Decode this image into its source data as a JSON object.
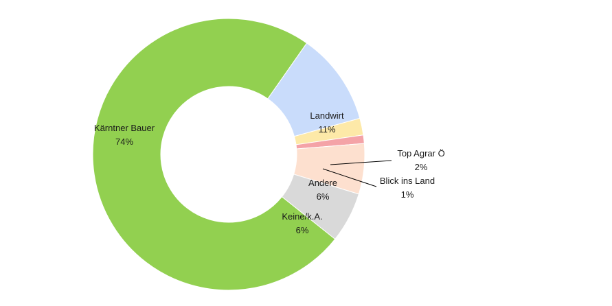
{
  "chart_data": {
    "type": "pie",
    "variant": "doughnut",
    "title": "",
    "legend": "none",
    "slices": [
      {
        "name": "Landwirt",
        "value": 11,
        "label": "11%",
        "color": "#c9dcfb"
      },
      {
        "name": "Top Agrar Ö",
        "value": 2,
        "label": "2%",
        "color": "#fde9a8"
      },
      {
        "name": "Blick ins Land",
        "value": 1,
        "label": "1%",
        "color": "#f4a3a7"
      },
      {
        "name": "Andere",
        "value": 6,
        "label": "6%",
        "color": "#fde0cf"
      },
      {
        "name": "Keine/k.A.",
        "value": 6,
        "label": "6%",
        "color": "#d9d9d9"
      },
      {
        "name": "Kärntner Bauer",
        "value": 74,
        "label": "74%",
        "color": "#92d050"
      }
    ]
  }
}
